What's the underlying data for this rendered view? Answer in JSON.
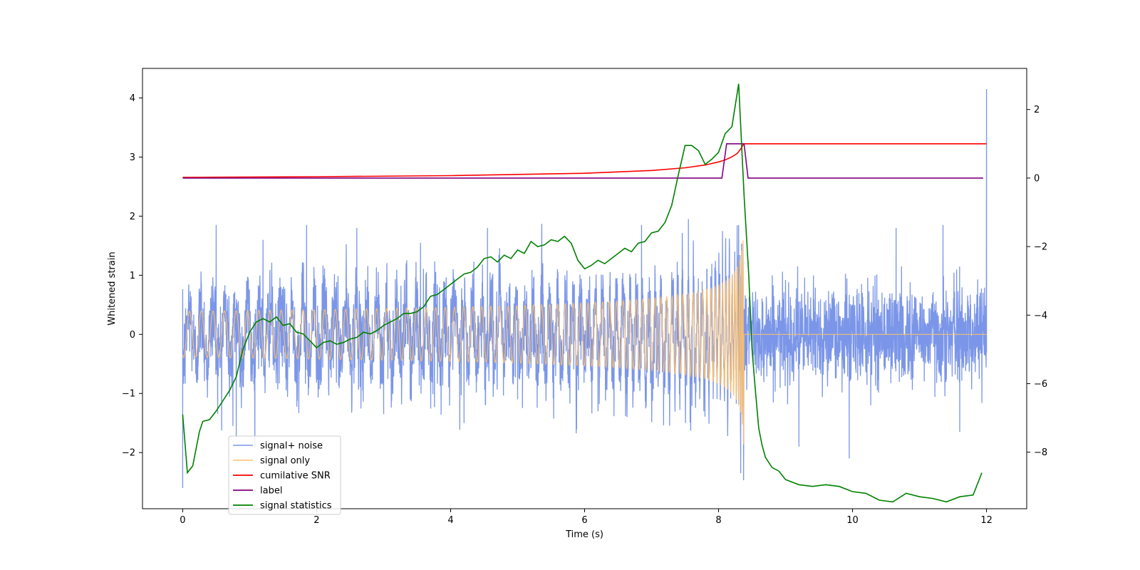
{
  "chart_data": {
    "type": "line",
    "xlabel": "Time (s)",
    "ylabel": "Whitened strain",
    "xlim": [
      -0.6,
      12.6
    ],
    "ylim": [
      -2.95,
      4.5
    ],
    "y2lim": [
      -9.65,
      3.2
    ],
    "xticks": [
      0,
      2,
      4,
      6,
      8,
      10,
      12
    ],
    "xtick_labels": [
      "0",
      "2",
      "4",
      "6",
      "8",
      "10",
      "12"
    ],
    "yticks": [
      -2,
      -1,
      0,
      1,
      2,
      3,
      4
    ],
    "ytick_labels": [
      "−2",
      "−1",
      "0",
      "1",
      "2",
      "3",
      "4"
    ],
    "y2ticks": [
      -8,
      -6,
      -4,
      -2,
      0,
      2
    ],
    "y2tick_labels": [
      "−8",
      "−6",
      "−4",
      "−2",
      "0",
      "2"
    ],
    "legend_position": "lower-left",
    "series": [
      {
        "name": "signal+ noise",
        "axis": "left",
        "color": "#7b96e8",
        "kind": "noise",
        "sigma": 0.4,
        "peak_values": [
          [
            0.0,
            -2.6
          ],
          [
            0.5,
            1.85
          ],
          [
            0.75,
            -1.55
          ],
          [
            0.8,
            -1.75
          ],
          [
            1.2,
            1.6
          ],
          [
            1.85,
            1.85
          ],
          [
            2.6,
            1.8
          ],
          [
            3.0,
            -1.35
          ],
          [
            3.55,
            1.55
          ],
          [
            4.2,
            -1.5
          ],
          [
            4.55,
            1.8
          ],
          [
            5.0,
            -1.1
          ],
          [
            6.2,
            -1.3
          ],
          [
            6.85,
            1.85
          ],
          [
            7.55,
            1.95
          ],
          [
            8.3,
            1.85
          ],
          [
            8.33,
            -2.35
          ],
          [
            9.2,
            -1.9
          ],
          [
            9.95,
            -2.1
          ],
          [
            10.65,
            1.8
          ],
          [
            11.35,
            1.85
          ],
          [
            11.6,
            -1.65
          ],
          [
            12.0,
            4.15
          ],
          [
            12.0,
            1.95
          ]
        ]
      },
      {
        "name": "signal only",
        "axis": "left",
        "color": "#ffc069",
        "kind": "chirp",
        "merger_time": 8.38,
        "peak_amplitude": 2.1
      },
      {
        "name": "cumilative SNR",
        "axis": "right",
        "color": "#ff0000",
        "kind": "line",
        "x": [
          0.0,
          2.0,
          4.0,
          6.0,
          7.0,
          7.5,
          7.8,
          8.0,
          8.1,
          8.2,
          8.28,
          8.33,
          8.36,
          8.38,
          12.0
        ],
        "y": [
          0.02,
          0.04,
          0.07,
          0.14,
          0.22,
          0.3,
          0.38,
          0.47,
          0.53,
          0.62,
          0.72,
          0.85,
          0.95,
          1.0,
          1.0
        ]
      },
      {
        "name": "label",
        "axis": "right",
        "color": "#800080",
        "kind": "line",
        "x": [
          0.0,
          8.05,
          8.12,
          8.38,
          8.44,
          11.95
        ],
        "y": [
          0.0,
          0.0,
          1.0,
          1.0,
          0.0,
          0.0
        ]
      },
      {
        "name": "signal statistics",
        "axis": "right",
        "color": "#008000",
        "kind": "line",
        "x": [
          0.0,
          0.07,
          0.15,
          0.2,
          0.25,
          0.3,
          0.4,
          0.5,
          0.6,
          0.7,
          0.8,
          0.9,
          1.0,
          1.1,
          1.2,
          1.3,
          1.4,
          1.5,
          1.6,
          1.7,
          1.8,
          1.9,
          2.0,
          2.1,
          2.2,
          2.3,
          2.4,
          2.5,
          2.6,
          2.7,
          2.8,
          2.9,
          3.0,
          3.1,
          3.2,
          3.3,
          3.4,
          3.5,
          3.6,
          3.7,
          3.8,
          3.9,
          4.0,
          4.1,
          4.2,
          4.3,
          4.4,
          4.5,
          4.6,
          4.7,
          4.8,
          4.9,
          5.0,
          5.1,
          5.2,
          5.3,
          5.4,
          5.5,
          5.6,
          5.7,
          5.8,
          5.9,
          6.0,
          6.1,
          6.2,
          6.3,
          6.4,
          6.5,
          6.6,
          6.7,
          6.8,
          6.9,
          7.0,
          7.1,
          7.2,
          7.3,
          7.4,
          7.5,
          7.6,
          7.7,
          7.8,
          7.9,
          8.0,
          8.1,
          8.2,
          8.3,
          8.38,
          8.45,
          8.5,
          8.55,
          8.6,
          8.65,
          8.7,
          8.8,
          8.9,
          9.0,
          9.2,
          9.4,
          9.6,
          9.8,
          10.0,
          10.2,
          10.4,
          10.6,
          10.8,
          11.0,
          11.2,
          11.4,
          11.6,
          11.8,
          11.93
        ],
        "y": [
          -6.9,
          -8.6,
          -8.4,
          -7.9,
          -7.4,
          -7.1,
          -7.05,
          -6.8,
          -6.5,
          -6.2,
          -5.8,
          -5.0,
          -4.5,
          -4.2,
          -4.1,
          -4.2,
          -4.05,
          -4.3,
          -4.25,
          -4.5,
          -4.55,
          -4.75,
          -4.95,
          -4.8,
          -4.75,
          -4.85,
          -4.8,
          -4.7,
          -4.65,
          -4.5,
          -4.55,
          -4.45,
          -4.3,
          -4.2,
          -4.1,
          -3.95,
          -3.95,
          -3.9,
          -3.75,
          -3.45,
          -3.4,
          -3.25,
          -3.1,
          -2.95,
          -2.8,
          -2.75,
          -2.6,
          -2.35,
          -2.3,
          -2.45,
          -2.25,
          -2.35,
          -2.1,
          -2.2,
          -1.85,
          -2.0,
          -1.95,
          -1.8,
          -1.85,
          -1.7,
          -1.9,
          -2.4,
          -2.65,
          -2.55,
          -2.4,
          -2.5,
          -2.35,
          -2.2,
          -2.05,
          -2.15,
          -1.9,
          -1.85,
          -1.6,
          -1.55,
          -1.3,
          -0.8,
          0.1,
          0.95,
          0.95,
          0.8,
          0.4,
          0.55,
          0.75,
          1.3,
          1.5,
          2.75,
          -0.5,
          -2.8,
          -5.0,
          -6.2,
          -7.3,
          -7.8,
          -8.15,
          -8.45,
          -8.55,
          -8.8,
          -8.95,
          -9.0,
          -8.95,
          -9.0,
          -9.15,
          -9.2,
          -9.4,
          -9.45,
          -9.2,
          -9.3,
          -9.35,
          -9.45,
          -9.3,
          -9.25,
          -8.6
        ]
      }
    ]
  }
}
